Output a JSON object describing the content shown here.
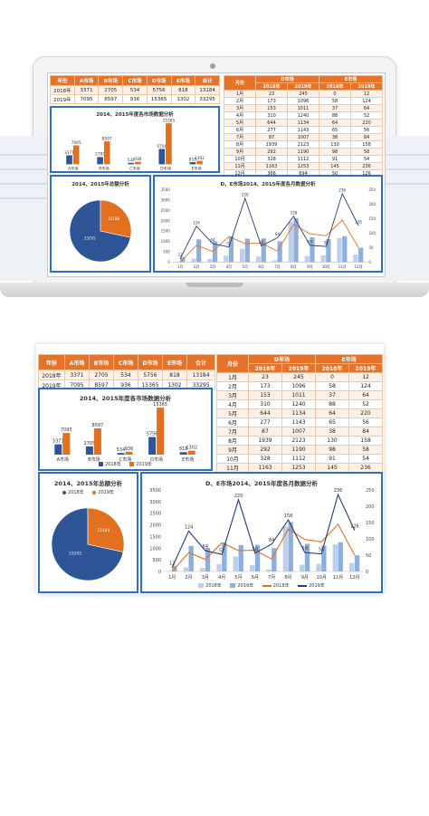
{
  "market_table": {
    "headers": [
      "年份",
      "A市场",
      "B市场",
      "C市场",
      "D市场",
      "E市场",
      "合计"
    ],
    "rows": [
      [
        "2018年",
        "3371",
        "2705",
        "534",
        "5756",
        "818",
        "13184"
      ],
      [
        "2019年",
        "7095",
        "8597",
        "936",
        "15365",
        "1302",
        "33295"
      ]
    ]
  },
  "monthly_table": {
    "group_headers": [
      "月份",
      "D市场",
      "E市场"
    ],
    "year_labels": [
      "2018年",
      "2019年",
      "2018年",
      "2019年"
    ],
    "rows": [
      [
        "1月",
        "23",
        "245",
        "0",
        "12"
      ],
      [
        "2月",
        "173",
        "1096",
        "58",
        "124"
      ],
      [
        "3月",
        "153",
        "1011",
        "37",
        "64"
      ],
      [
        "4月",
        "310",
        "1240",
        "88",
        "52"
      ],
      [
        "5月",
        "644",
        "1134",
        "64",
        "220"
      ],
      [
        "6月",
        "277",
        "1143",
        "65",
        "56"
      ],
      [
        "7月",
        "87",
        "1007",
        "38",
        "84"
      ],
      [
        "8月",
        "1939",
        "2123",
        "130",
        "158"
      ],
      [
        "9月",
        "292",
        "1190",
        "98",
        "58"
      ],
      [
        "10月",
        "328",
        "1112",
        "91",
        "54"
      ],
      [
        "11月",
        "1163",
        "1253",
        "145",
        "236"
      ],
      [
        "12月",
        "366",
        "694",
        "50",
        "126"
      ]
    ]
  },
  "market_chart": {
    "title": "2014、2015年度各市场数据分析",
    "legend": [
      "2018年",
      "2019年"
    ],
    "colors": {
      "y2018": "#2e5597",
      "y2019": "#e2701f"
    },
    "chart_data": {
      "type": "bar",
      "categories": [
        "A市场",
        "B市场",
        "C市场",
        "D市场",
        "E市场"
      ],
      "series": [
        {
          "name": "2018年",
          "values": [
            3371,
            2705,
            534,
            5756,
            818
          ]
        },
        {
          "name": "2019年",
          "values": [
            7095,
            8597,
            936,
            15365,
            1302
          ]
        }
      ]
    }
  },
  "pie_chart": {
    "title": "2014、2015年总额分析",
    "legend": [
      "2018年",
      "2019年"
    ],
    "colors": {
      "y2018": "#2e5597",
      "y2019": "#e2701f"
    },
    "chart_data": {
      "type": "pie",
      "labels": [
        "2018年",
        "2019年"
      ],
      "values": [
        13184,
        33295
      ],
      "data_labels": [
        "33295",
        "13184"
      ]
    }
  },
  "combo_chart": {
    "title": "D、E市场2014、2015年度各月数据分析",
    "legend": [
      "2018年",
      "2019年",
      "2018年",
      "2019年"
    ],
    "colors": {
      "bar2018": "#bcd0ec",
      "bar2019": "#8eaedd",
      "line2018": "#e2701f",
      "line2019": "#1f3d7a"
    },
    "chart_data": {
      "type": "bar",
      "categories": [
        "1月",
        "2月",
        "3月",
        "4月",
        "5月",
        "6月",
        "7月",
        "8月",
        "9月",
        "10月",
        "11月",
        "12月"
      ],
      "y_left": {
        "ticks": [
          "0",
          "500",
          "1000",
          "1500",
          "2000",
          "2500",
          "3000",
          "3500"
        ],
        "ylim": [
          0,
          3500
        ]
      },
      "y_right": {
        "ticks": [
          "0",
          "50",
          "100",
          "150",
          "200",
          "250"
        ],
        "ylim": [
          0,
          250
        ]
      },
      "series": [
        {
          "name": "2018年",
          "kind": "bar",
          "axis": "left",
          "values": [
            23,
            173,
            153,
            310,
            644,
            277,
            87,
            1939,
            292,
            328,
            1163,
            366
          ]
        },
        {
          "name": "2019年",
          "kind": "bar",
          "axis": "left",
          "values": [
            245,
            1096,
            1011,
            1240,
            1134,
            1143,
            1007,
            2123,
            1190,
            1112,
            1253,
            694
          ]
        },
        {
          "name": "2018年",
          "kind": "line",
          "axis": "right",
          "values": [
            0,
            58,
            37,
            88,
            64,
            65,
            38,
            130,
            98,
            91,
            145,
            50
          ]
        },
        {
          "name": "2019年",
          "kind": "line",
          "axis": "right",
          "values": [
            12,
            124,
            64,
            52,
            220,
            56,
            84,
            158,
            58,
            54,
            236,
            126
          ]
        }
      ],
      "data_labels": [
        "12",
        "124",
        "64",
        "52",
        "220",
        "56",
        "84",
        "158",
        "58",
        "54",
        "236",
        "126"
      ]
    }
  }
}
